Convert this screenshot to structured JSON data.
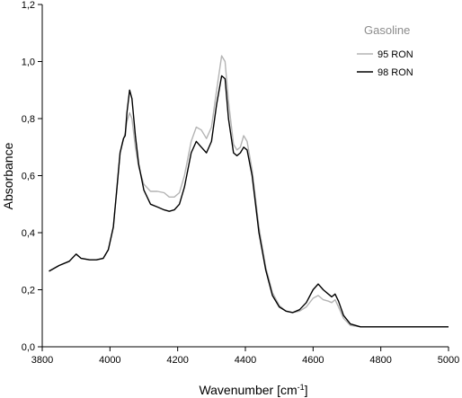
{
  "chart_data": {
    "type": "line",
    "title": "",
    "xlabel": "Wavenumber [cm",
    "xlabel_sup": "-1",
    "xlabel_end": "]",
    "ylabel": "Absorbance",
    "xlim": [
      3800,
      5000
    ],
    "ylim": [
      0.0,
      1.2
    ],
    "x_ticks": [
      3800,
      4000,
      4200,
      4400,
      4600,
      4800,
      5000
    ],
    "x_tick_labels": [
      "3800",
      "4000",
      "4200",
      "4400",
      "4600",
      "4800",
      "5000"
    ],
    "y_ticks": [
      0.0,
      0.2,
      0.4,
      0.6,
      0.8,
      1.0,
      1.2
    ],
    "y_tick_labels": [
      "0,0",
      "0,2",
      "0,4",
      "0,6",
      "0,8",
      "1,0",
      "1,2"
    ],
    "grid": false,
    "legend": {
      "title": "Gasoline",
      "placement": "top-right"
    },
    "series": [
      {
        "name": "95 RON",
        "color": "#b4b4b4",
        "points": [
          [
            3820,
            0.265
          ],
          [
            3850,
            0.285
          ],
          [
            3880,
            0.3
          ],
          [
            3900,
            0.325
          ],
          [
            3915,
            0.31
          ],
          [
            3940,
            0.305
          ],
          [
            3960,
            0.305
          ],
          [
            3980,
            0.31
          ],
          [
            3995,
            0.34
          ],
          [
            4010,
            0.42
          ],
          [
            4020,
            0.55
          ],
          [
            4030,
            0.68
          ],
          [
            4040,
            0.73
          ],
          [
            4045,
            0.75
          ],
          [
            4050,
            0.79
          ],
          [
            4058,
            0.82
          ],
          [
            4065,
            0.8
          ],
          [
            4075,
            0.7
          ],
          [
            4085,
            0.63
          ],
          [
            4100,
            0.57
          ],
          [
            4120,
            0.545
          ],
          [
            4140,
            0.545
          ],
          [
            4160,
            0.54
          ],
          [
            4175,
            0.525
          ],
          [
            4190,
            0.525
          ],
          [
            4205,
            0.54
          ],
          [
            4220,
            0.6
          ],
          [
            4240,
            0.72
          ],
          [
            4255,
            0.77
          ],
          [
            4270,
            0.76
          ],
          [
            4285,
            0.73
          ],
          [
            4300,
            0.77
          ],
          [
            4315,
            0.9
          ],
          [
            4330,
            1.02
          ],
          [
            4340,
            1.0
          ],
          [
            4350,
            0.86
          ],
          [
            4365,
            0.71
          ],
          [
            4375,
            0.69
          ],
          [
            4385,
            0.7
          ],
          [
            4395,
            0.74
          ],
          [
            4405,
            0.72
          ],
          [
            4420,
            0.62
          ],
          [
            4440,
            0.42
          ],
          [
            4460,
            0.28
          ],
          [
            4480,
            0.19
          ],
          [
            4500,
            0.145
          ],
          [
            4520,
            0.125
          ],
          [
            4540,
            0.12
          ],
          [
            4560,
            0.125
          ],
          [
            4580,
            0.14
          ],
          [
            4600,
            0.17
          ],
          [
            4615,
            0.18
          ],
          [
            4630,
            0.165
          ],
          [
            4645,
            0.16
          ],
          [
            4655,
            0.155
          ],
          [
            4665,
            0.165
          ],
          [
            4675,
            0.14
          ],
          [
            4690,
            0.1
          ],
          [
            4710,
            0.075
          ],
          [
            4740,
            0.07
          ],
          [
            4800,
            0.07
          ],
          [
            4900,
            0.07
          ],
          [
            5000,
            0.07
          ]
        ]
      },
      {
        "name": "98 RON",
        "color": "#000000",
        "points": [
          [
            3820,
            0.265
          ],
          [
            3850,
            0.285
          ],
          [
            3880,
            0.3
          ],
          [
            3900,
            0.325
          ],
          [
            3915,
            0.31
          ],
          [
            3940,
            0.305
          ],
          [
            3960,
            0.305
          ],
          [
            3980,
            0.31
          ],
          [
            3995,
            0.34
          ],
          [
            4010,
            0.42
          ],
          [
            4020,
            0.55
          ],
          [
            4030,
            0.68
          ],
          [
            4040,
            0.73
          ],
          [
            4045,
            0.74
          ],
          [
            4050,
            0.82
          ],
          [
            4058,
            0.9
          ],
          [
            4065,
            0.87
          ],
          [
            4075,
            0.74
          ],
          [
            4085,
            0.64
          ],
          [
            4100,
            0.55
          ],
          [
            4120,
            0.5
          ],
          [
            4140,
            0.49
          ],
          [
            4160,
            0.48
          ],
          [
            4175,
            0.475
          ],
          [
            4190,
            0.48
          ],
          [
            4205,
            0.5
          ],
          [
            4220,
            0.56
          ],
          [
            4240,
            0.68
          ],
          [
            4255,
            0.72
          ],
          [
            4270,
            0.7
          ],
          [
            4285,
            0.68
          ],
          [
            4300,
            0.72
          ],
          [
            4315,
            0.85
          ],
          [
            4330,
            0.95
          ],
          [
            4340,
            0.94
          ],
          [
            4350,
            0.8
          ],
          [
            4365,
            0.68
          ],
          [
            4375,
            0.67
          ],
          [
            4385,
            0.68
          ],
          [
            4395,
            0.7
          ],
          [
            4405,
            0.69
          ],
          [
            4420,
            0.6
          ],
          [
            4440,
            0.4
          ],
          [
            4460,
            0.27
          ],
          [
            4480,
            0.18
          ],
          [
            4500,
            0.14
          ],
          [
            4520,
            0.125
          ],
          [
            4540,
            0.12
          ],
          [
            4560,
            0.13
          ],
          [
            4580,
            0.155
          ],
          [
            4600,
            0.2
          ],
          [
            4615,
            0.22
          ],
          [
            4630,
            0.2
          ],
          [
            4645,
            0.185
          ],
          [
            4655,
            0.175
          ],
          [
            4665,
            0.185
          ],
          [
            4675,
            0.16
          ],
          [
            4690,
            0.11
          ],
          [
            4710,
            0.08
          ],
          [
            4740,
            0.07
          ],
          [
            4800,
            0.07
          ],
          [
            4900,
            0.07
          ],
          [
            5000,
            0.07
          ]
        ]
      }
    ]
  }
}
